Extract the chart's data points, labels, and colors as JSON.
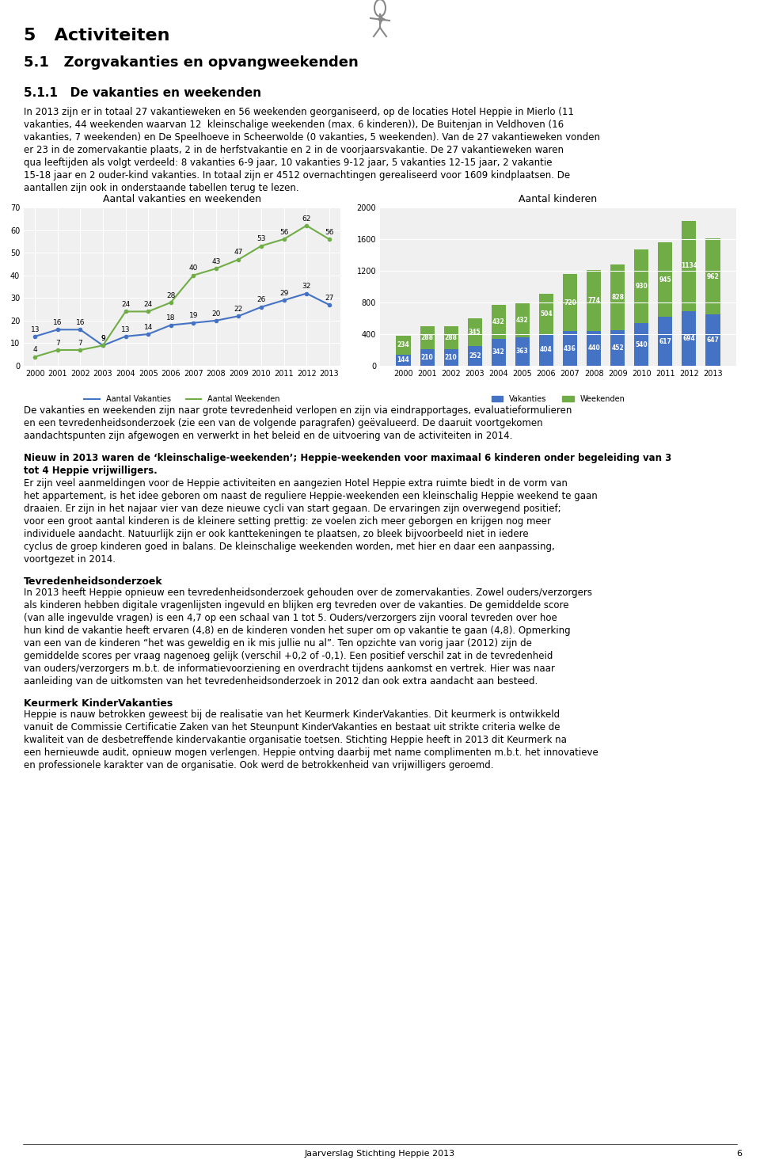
{
  "page_title": "5   Activiteiten",
  "section_title": "5.1   Zorgvakanties en opvangweekenden",
  "subsection_title": "5.1.1   De vakanties en weekenden",
  "body_text_1": "In 2013 zijn er in totaal 27 vakantieweken en 56 weekenden georganiseerd, op de locaties Hotel Heppie in Mierlo (11 vakanties, 44 weekenden waarvan 12  kleinschalige weekenden (max. 6 kinderen)), De Buitenjan in Veldhoven (16 vakanties, 7 weekenden) en De Speelhoeve in Scheerwolde (0 vakanties, 5 weekenden). Van de 27 vakantieweken vonden er 23 in de zomervakantie plaats, 2 in de herfstvakantie en 2 in de voorjaarsvakantie. De 27 vakantieweken waren qua leeftijden als volgt verdeeld: 8 vakanties 6-9 jaar, 10 vakanties 9-12 jaar, 5 vakanties 12-15 jaar, 2 vakantie 15-18 jaar en 2 ouder-kind vakanties. In totaal zijn er 4512 overnachtingen gerealiseerd voor 1609 kindplaatsen. De aantallen zijn ook in onderstaande tabellen terug te lezen.",
  "chart1_title": "Aantal vakanties en weekenden",
  "chart1_years": [
    "2000",
    "2001",
    "2002",
    "2003",
    "2004",
    "2005",
    "2006",
    "2007",
    "2008",
    "2009",
    "2010",
    "2011",
    "2012",
    "2013"
  ],
  "chart1_vakanties": [
    13,
    16,
    16,
    9,
    13,
    14,
    18,
    19,
    20,
    22,
    26,
    29,
    32,
    27
  ],
  "chart1_weekenden": [
    4,
    7,
    7,
    9,
    24,
    24,
    28,
    40,
    43,
    47,
    53,
    56,
    62,
    56
  ],
  "chart1_ylim": [
    0,
    70
  ],
  "chart1_yticks": [
    0,
    10,
    20,
    30,
    40,
    50,
    60,
    70
  ],
  "chart1_legend_vakanties": "Aantal Vakanties",
  "chart1_legend_weekenden": "Aantal Weekenden",
  "chart1_color_vakanties": "#4472c4",
  "chart1_color_weekenden": "#70ad47",
  "chart2_title": "Aantal kinderen",
  "chart2_years": [
    "2000",
    "2001",
    "2002",
    "2003",
    "2004",
    "2005",
    "2006",
    "2007",
    "2008",
    "2009",
    "2010",
    "2011",
    "2012",
    "2013"
  ],
  "chart2_vakanties": [
    144,
    210,
    210,
    252,
    342,
    363,
    404,
    436,
    440,
    452,
    540,
    617,
    694,
    647
  ],
  "chart2_weekenden": [
    234,
    288,
    288,
    345,
    432,
    432,
    504,
    720,
    774,
    828,
    930,
    945,
    1134,
    962
  ],
  "chart2_ylim": [
    0,
    2000
  ],
  "chart2_yticks": [
    0,
    400,
    800,
    1200,
    1600,
    2000
  ],
  "chart2_legend_vakanties": "Vakanties",
  "chart2_legend_weekenden": "Weekenden",
  "chart2_color_vakanties": "#4472c4",
  "chart2_color_weekenden": "#70ad47",
  "body_text_2": "De vakanties en weekenden zijn naar grote tevredenheid verlopen en zijn via eindrapportages, evaluatieformulieren en een tevredenheidsonderzoek (zie een van de volgende paragrafen) geëvalueerd. De daaruit voortgekomen aandachtspunten zijn afgewogen en verwerkt in het beleid en de uitvoering van de activiteiten in 2014.",
  "body_text_3_bold": "Nieuw in 2013 waren de ‘kleinschalige-weekenden’; Heppie-weekenden voor maximaal 6 kinderen onder begeleiding van 3 tot 4 Heppie vrijwilligers.",
  "body_text_3": "Er zijn veel aanmeldingen voor de Heppie activiteiten en aangezien Hotel Heppie extra ruimte biedt in de vorm van het appartement, is het idee geboren om naast de reguliere Heppie-weekenden een kleinschalig Heppie weekend te gaan draaien. Er zijn in het najaar vier van deze nieuwe cycli van start gegaan. De ervaringen zijn overwegend positief; voor een groot aantal kinderen is de kleinere setting prettig: ze voelen zich meer geborgen en krijgen nog meer individuele aandacht. Natuurlijk zijn er ook kanttekeningen te plaatsen, zo bleek bijvoorbeeld niet in iedere cyclus de groep kinderen goed in balans. De kleinschalige weekenden worden, met hier en daar een aanpassing, voortgezet in 2014.",
  "section_title_2_bold": "Tevredenheidsonderzoek",
  "body_text_4": "In 2013 heeft Heppie opnieuw een tevredenheidsonderzoek gehouden over de zomervakanties. Zowel ouders/verzorgers als kinderen hebben digitale vragenlijsten ingevuld en blijken erg tevreden over de vakanties. De gemiddelde score (van alle ingevulde vragen) is een 4,7 op een schaal van 1 tot 5. Ouders/verzorgers zijn vooral tevreden over hoe hun kind de vakantie heeft ervaren (4,8) en de kinderen vonden het super om op vakantie te gaan (4,8). Opmerking van een van de kinderen “het was geweldig en ik mis jullie nu al”. Ten opzichte van vorig jaar (2012) zijn de gemiddelde scores per vraag nagenoeg gelijk (verschil +0,2 of -0,1). Een positief verschil zat in de tevredenheid van ouders/verzorgers m.b.t. de informatievoorziening en overdracht tijdens aankomst en vertrek. Hier was naar aanleiding van de uitkomsten van het tevredenheidsonderzoek in 2012 dan ook extra aandacht aan besteed.",
  "section_title_3_bold": "Keurmerk KinderVakanties",
  "body_text_5": "Heppie is nauw betrokken geweest bij de realisatie van het Keurmerk KinderVakanties. Dit keurmerk is ontwikkeld vanuit de Commissie Certificatie Zaken van het Steunpunt KinderVakanties en bestaat uit strikte criteria welke de kwaliteit van de desbetreffende kindervakantie organisatie toetsen. Stichting Heppie heeft in 2013 dit Keurmerk na een hernieuwde audit, opnieuw mogen verlengen. Heppie ontving daarbij met name complimenten m.b.t. het innovatieve en professionele karakter van de organisatie. Ook werd de betrokkenheid van vrijwilligers geroemd.",
  "footer_text": "Jaarverslag Stichting Heppie 2013",
  "footer_page": "6",
  "background_color": "#ffffff",
  "text_color": "#000000",
  "grid_color": "#d9d9d9"
}
